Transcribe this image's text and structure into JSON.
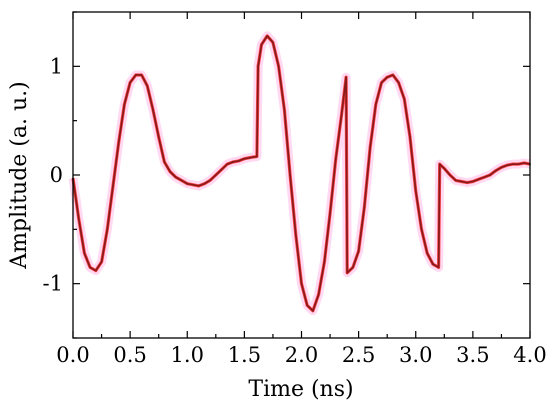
{
  "chart_data": {
    "type": "line",
    "title": "",
    "xlabel": "Time (ns)",
    "ylabel": "Amplitude (a. u.)",
    "xlim": [
      0.0,
      4.0
    ],
    "ylim": [
      -1.5,
      1.5
    ],
    "x_ticks": [
      "0.0",
      "0.5",
      "1.0",
      "1.5",
      "2.0",
      "2.5",
      "3.0",
      "3.5",
      "4.0"
    ],
    "y_ticks": [
      "-1",
      "0",
      "1"
    ],
    "grid": false,
    "legend": "none",
    "colors": {
      "signal": "#8b1a1a",
      "highlight": "#ff2020",
      "glow": "#ff66cc"
    },
    "series": [
      {
        "x": [
          0.0,
          0.05,
          0.1,
          0.15,
          0.2,
          0.25,
          0.3,
          0.35,
          0.4,
          0.45,
          0.5,
          0.55,
          0.6,
          0.65,
          0.7,
          0.75,
          0.8,
          0.85,
          0.9,
          0.95,
          1.0,
          1.05,
          1.1,
          1.15,
          1.2,
          1.25,
          1.3,
          1.35,
          1.4,
          1.45,
          1.5,
          1.55,
          1.61,
          1.62,
          1.65,
          1.7,
          1.75,
          1.8,
          1.85,
          1.9,
          1.95,
          2.0,
          2.05,
          2.1,
          2.15,
          2.2,
          2.25,
          2.3,
          2.35,
          2.39,
          2.4,
          2.45,
          2.5,
          2.55,
          2.6,
          2.65,
          2.7,
          2.75,
          2.8,
          2.85,
          2.9,
          2.95,
          3.0,
          3.05,
          3.1,
          3.15,
          3.2,
          3.21,
          3.25,
          3.3,
          3.35,
          3.4,
          3.45,
          3.5,
          3.55,
          3.6,
          3.65,
          3.7,
          3.75,
          3.8,
          3.85,
          3.9,
          3.95,
          4.0
        ],
        "y": [
          -0.03,
          -0.4,
          -0.72,
          -0.85,
          -0.88,
          -0.8,
          -0.5,
          -0.1,
          0.3,
          0.65,
          0.85,
          0.92,
          0.92,
          0.82,
          0.6,
          0.35,
          0.12,
          0.03,
          -0.02,
          -0.05,
          -0.08,
          -0.09,
          -0.1,
          -0.08,
          -0.05,
          0.0,
          0.05,
          0.1,
          0.12,
          0.13,
          0.15,
          0.16,
          0.17,
          1.0,
          1.2,
          1.28,
          1.22,
          1.0,
          0.6,
          0.0,
          -0.55,
          -1.0,
          -1.2,
          -1.25,
          -1.1,
          -0.8,
          -0.35,
          0.15,
          0.55,
          0.9,
          -0.9,
          -0.85,
          -0.7,
          -0.3,
          0.25,
          0.65,
          0.85,
          0.9,
          0.92,
          0.85,
          0.7,
          0.35,
          -0.15,
          -0.5,
          -0.72,
          -0.82,
          -0.85,
          0.1,
          0.06,
          0.0,
          -0.05,
          -0.06,
          -0.07,
          -0.06,
          -0.04,
          -0.02,
          0.0,
          0.04,
          0.07,
          0.09,
          0.1,
          0.1,
          0.11,
          0.1
        ]
      }
    ]
  }
}
